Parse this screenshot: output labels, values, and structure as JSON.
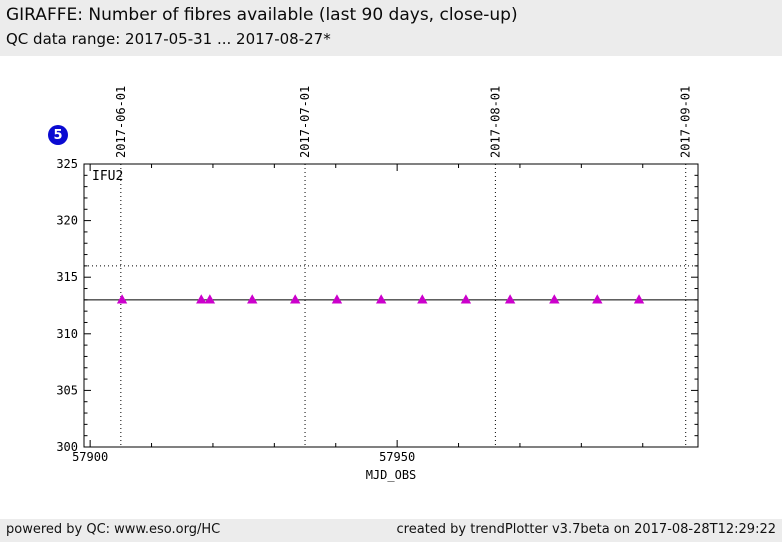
{
  "header": {
    "title": "GIRAFFE: Number of fibres available (last 90 days, close-up)",
    "subtitle": "QC data range: 2017-05-31 ... 2017-08-27*"
  },
  "badge": {
    "label": "5",
    "color": "#0a0ad2"
  },
  "chart_data": {
    "type": "scatter",
    "inset_label": "IFU2",
    "xlabel": "MJD_OBS",
    "xlim": [
      57899,
      57999
    ],
    "ylim": [
      300,
      325
    ],
    "y_ticks": [
      300,
      305,
      310,
      315,
      320,
      325
    ],
    "y_minor_step": 1,
    "x_ticks_labeled": [
      57900,
      57950
    ],
    "x_minor_step": 10,
    "grid": "vertical-dotted-months-only",
    "top_axis_dates": [
      {
        "label": "2017-06-01",
        "mjd": 57905
      },
      {
        "label": "2017-07-01",
        "mjd": 57935
      },
      {
        "label": "2017-08-01",
        "mjd": 57966
      },
      {
        "label": "2017-09-01",
        "mjd": 57997
      }
    ],
    "reference_lines": {
      "solid_mean": 313,
      "dotted_threshold": 316
    },
    "marker": {
      "shape": "triangle-up",
      "color": "#cc00cc"
    },
    "series": [
      {
        "name": "IFU2",
        "points": [
          {
            "x": 57905.2,
            "y": 313
          },
          {
            "x": 57918.1,
            "y": 313
          },
          {
            "x": 57919.5,
            "y": 313
          },
          {
            "x": 57926.4,
            "y": 313
          },
          {
            "x": 57933.4,
            "y": 313
          },
          {
            "x": 57940.2,
            "y": 313
          },
          {
            "x": 57947.4,
            "y": 313
          },
          {
            "x": 57954.1,
            "y": 313
          },
          {
            "x": 57961.2,
            "y": 313
          },
          {
            "x": 57968.4,
            "y": 313
          },
          {
            "x": 57975.6,
            "y": 313
          },
          {
            "x": 57982.6,
            "y": 313
          },
          {
            "x": 57989.4,
            "y": 313
          }
        ]
      }
    ]
  },
  "footer": {
    "left": "powered by QC: www.eso.org/HC",
    "right": "created by trendPlotter v3.7beta on 2017-08-28T12:29:22"
  }
}
